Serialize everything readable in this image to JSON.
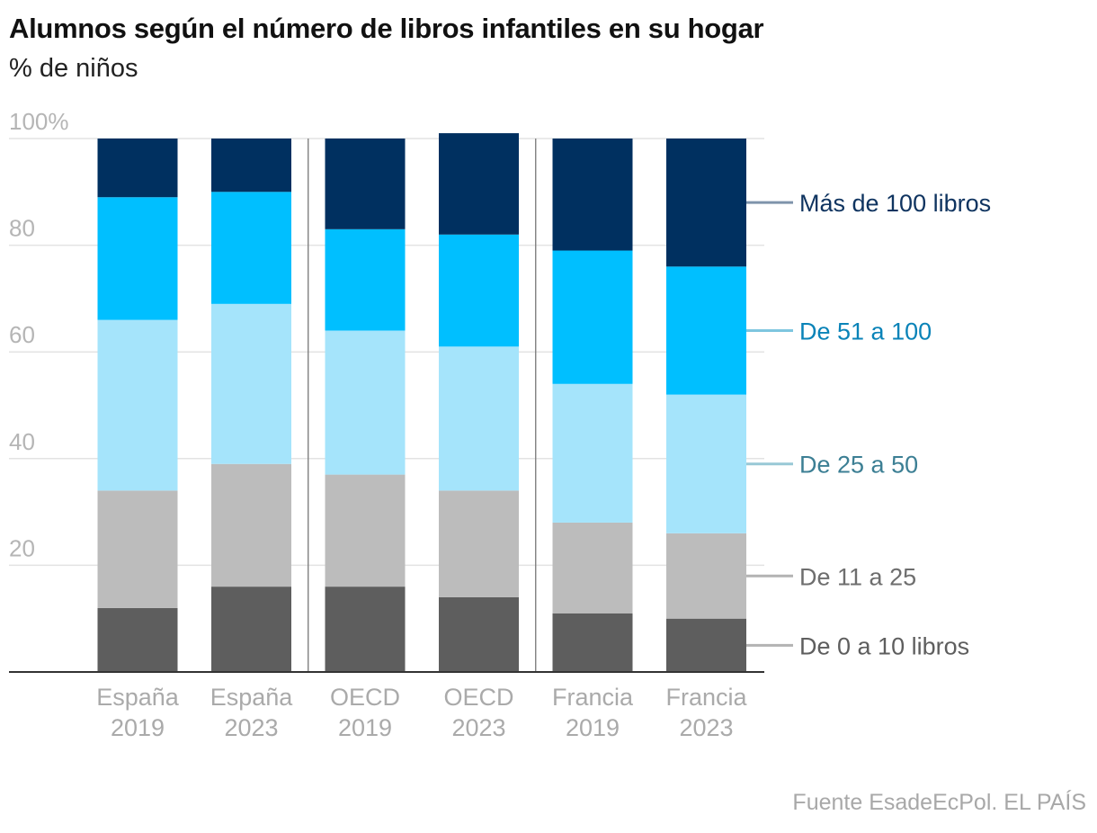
{
  "header": {
    "title": "Alumnos según el número de libros infantiles en su hogar",
    "subtitle": "% de niños"
  },
  "footer": {
    "source": "Fuente EsadeEcPol. EL PAÍS"
  },
  "chart_data": {
    "type": "bar",
    "stacked": true,
    "title": "Alumnos según el número de libros infantiles en su hogar",
    "subtitle": "% de niños",
    "ylim": [
      0,
      100
    ],
    "yticks": [
      20,
      40,
      60,
      80,
      100
    ],
    "ytick_labels": [
      "20",
      "40",
      "60",
      "80",
      "100%"
    ],
    "grid": true,
    "categories": [
      [
        "España",
        "2019"
      ],
      [
        "España",
        "2023"
      ],
      [
        "OECD",
        "2019"
      ],
      [
        "OECD",
        "2023"
      ],
      [
        "Francia",
        "2019"
      ],
      [
        "Francia",
        "2023"
      ]
    ],
    "series": [
      {
        "name": "De 0 a 10 libros",
        "color": "#5e5e5e",
        "label_color": "#5e5e5e",
        "line_color": "#b3b3b3",
        "values": [
          12,
          16,
          16,
          14,
          11,
          10
        ]
      },
      {
        "name": "De 11 a 25",
        "color": "#bcbcbc",
        "label_color": "#6e6e6e",
        "line_color": "#b3b3b3",
        "values": [
          22,
          23,
          21,
          20,
          17,
          16
        ]
      },
      {
        "name": "De 25 a 50",
        "color": "#a5e4fb",
        "label_color": "#3c7f94",
        "line_color": "#98c8d6",
        "values": [
          32,
          30,
          27,
          27,
          26,
          26
        ]
      },
      {
        "name": "De 51 a 100",
        "color": "#00bfff",
        "label_color": "#0a83b8",
        "line_color": "#7ec6df",
        "values": [
          23,
          21,
          19,
          21,
          25,
          24
        ]
      },
      {
        "name": "Más de 100 libros",
        "color": "#003060",
        "label_color": "#0f3460",
        "line_color": "#7f94ab",
        "values": [
          11,
          10,
          17,
          19,
          21,
          24
        ]
      }
    ],
    "legend_position": "right"
  }
}
